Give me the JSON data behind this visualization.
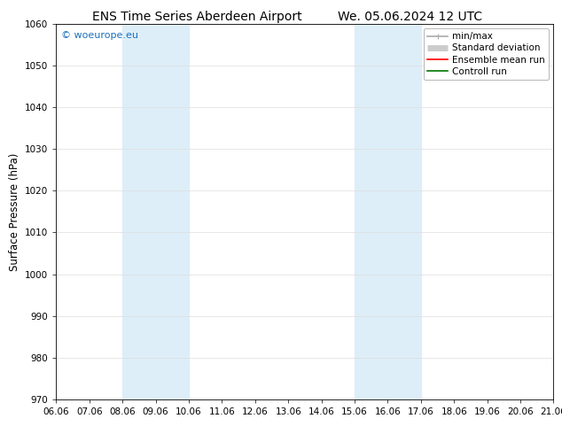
{
  "title_left": "ENS Time Series Aberdeen Airport",
  "title_right": "We. 05.06.2024 12 UTC",
  "ylabel": "Surface Pressure (hPa)",
  "ylim": [
    970,
    1060
  ],
  "yticks": [
    970,
    980,
    990,
    1000,
    1010,
    1020,
    1030,
    1040,
    1050,
    1060
  ],
  "xtick_labels": [
    "06.06",
    "07.06",
    "08.06",
    "09.06",
    "10.06",
    "11.06",
    "12.06",
    "13.06",
    "14.06",
    "15.06",
    "16.06",
    "17.06",
    "18.06",
    "19.06",
    "20.06",
    "21.06"
  ],
  "shaded_bands": [
    {
      "xstart": 2,
      "xend": 4,
      "color": "#ddeef8"
    },
    {
      "xstart": 9,
      "xend": 11,
      "color": "#ddeef8"
    }
  ],
  "watermark": "© woeurope.eu",
  "watermark_color": "#1a6fbf",
  "legend_items": [
    {
      "label": "min/max",
      "color": "#aaaaaa",
      "lw": 1.2
    },
    {
      "label": "Standard deviation",
      "color": "#cccccc",
      "lw": 5
    },
    {
      "label": "Ensemble mean run",
      "color": "#ff0000",
      "lw": 1.2
    },
    {
      "label": "Controll run",
      "color": "#007700",
      "lw": 1.2
    }
  ],
  "background_color": "#ffffff",
  "grid_color": "#dddddd",
  "title_fontsize": 10,
  "axis_fontsize": 8.5,
  "tick_fontsize": 7.5,
  "legend_fontsize": 7.5
}
